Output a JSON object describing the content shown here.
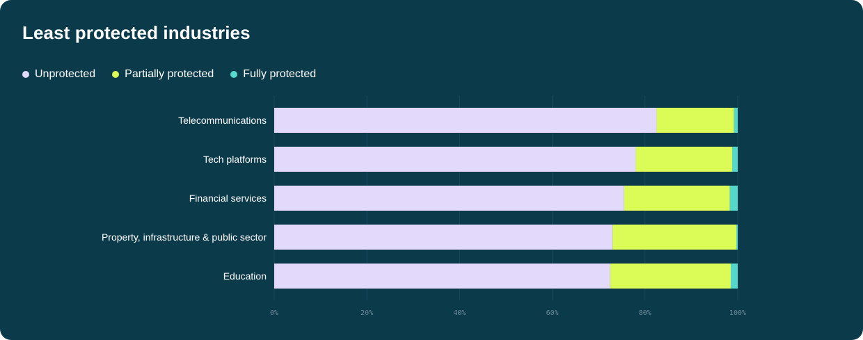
{
  "title": "Least protected industries",
  "legend": [
    {
      "name": "Unprotected",
      "color": "#e2d9fb"
    },
    {
      "name": "Partially protected",
      "color": "#dbfb56"
    },
    {
      "name": "Fully protected",
      "color": "#55d8c9"
    }
  ],
  "chart_data": {
    "type": "bar",
    "orientation": "horizontal",
    "stacked": true,
    "title": "Least protected industries",
    "categories": [
      "Telecommunications",
      "Tech platforms",
      "Financial services",
      "Property, infrastructure & public sector",
      "Education"
    ],
    "series": [
      {
        "name": "Unprotected",
        "color": "#e2d9fb",
        "values": [
          82.5,
          78,
          75.5,
          73,
          72.5
        ]
      },
      {
        "name": "Partially protected",
        "color": "#dbfb56",
        "values": [
          16.7,
          20.8,
          22.8,
          26.7,
          26
        ]
      },
      {
        "name": "Fully protected",
        "color": "#55d8c9",
        "values": [
          0.8,
          1.2,
          1.7,
          0.3,
          1.5
        ]
      }
    ],
    "x_ticks": [
      "0%",
      "20%",
      "40%",
      "60%",
      "80%",
      "100%"
    ],
    "xlim": [
      0,
      100
    ],
    "grid": true,
    "legend_position": "top-left"
  }
}
